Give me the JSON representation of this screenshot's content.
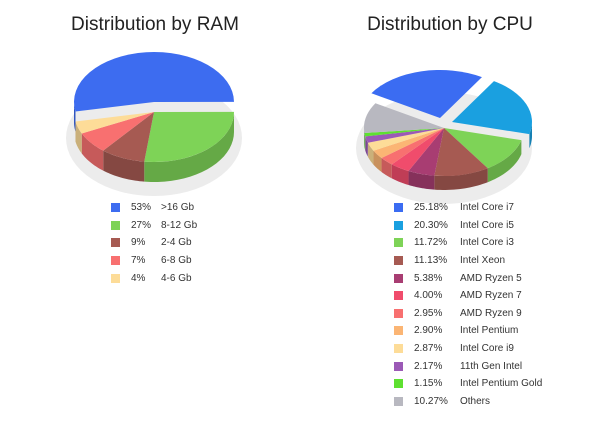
{
  "chart_data": [
    {
      "type": "pie",
      "title": "Distribution by RAM",
      "three_d": true,
      "legend_position": "bottom",
      "slices": [
        {
          "label": ">16 Gb",
          "pct_label": "53%",
          "value": 53,
          "color": "#3d6cf0"
        },
        {
          "label": "8-12 Gb",
          "pct_label": "27%",
          "value": 27,
          "color": "#7ed357"
        },
        {
          "label": "2-4 Gb",
          "pct_label": "9%",
          "value": 9,
          "color": "#a65a52"
        },
        {
          "label": "6-8 Gb",
          "pct_label": "7%",
          "value": 7,
          "color": "#f87070"
        },
        {
          "label": "4-6 Gb",
          "pct_label": "4%",
          "value": 4,
          "color": "#fddc98"
        }
      ]
    },
    {
      "type": "pie",
      "title": "Distribution by CPU",
      "three_d": true,
      "legend_position": "bottom",
      "slices": [
        {
          "label": "Intel Core i7",
          "pct_label": "25.18%",
          "value": 25.18,
          "color": "#3b6cf2"
        },
        {
          "label": "Intel Core i5",
          "pct_label": "20.30%",
          "value": 20.3,
          "color": "#1aa0e0"
        },
        {
          "label": "Intel Core i3",
          "pct_label": "11.72%",
          "value": 11.72,
          "color": "#7ed357"
        },
        {
          "label": "Intel Xeon",
          "pct_label": "11.13%",
          "value": 11.13,
          "color": "#a65a52"
        },
        {
          "label": "AMD Ryzen 5",
          "pct_label": "5.38%",
          "value": 5.38,
          "color": "#a83d72"
        },
        {
          "label": "AMD Ryzen 7",
          "pct_label": "4.00%",
          "value": 4.0,
          "color": "#f04c6c"
        },
        {
          "label": "AMD Ryzen 9",
          "pct_label": "2.95%",
          "value": 2.95,
          "color": "#f87070"
        },
        {
          "label": "Intel Pentium",
          "pct_label": "2.90%",
          "value": 2.9,
          "color": "#fbb574"
        },
        {
          "label": "Intel Core i9",
          "pct_label": "2.87%",
          "value": 2.87,
          "color": "#fddc98"
        },
        {
          "label": "11th Gen Intel",
          "pct_label": "2.17%",
          "value": 2.17,
          "color": "#9b59b6"
        },
        {
          "label": "Intel Pentium Gold",
          "pct_label": "1.15%",
          "value": 1.15,
          "color": "#5ee030"
        },
        {
          "label": "Others",
          "pct_label": "10.27%",
          "value": 10.27,
          "color": "#b8b8c0"
        }
      ]
    }
  ]
}
